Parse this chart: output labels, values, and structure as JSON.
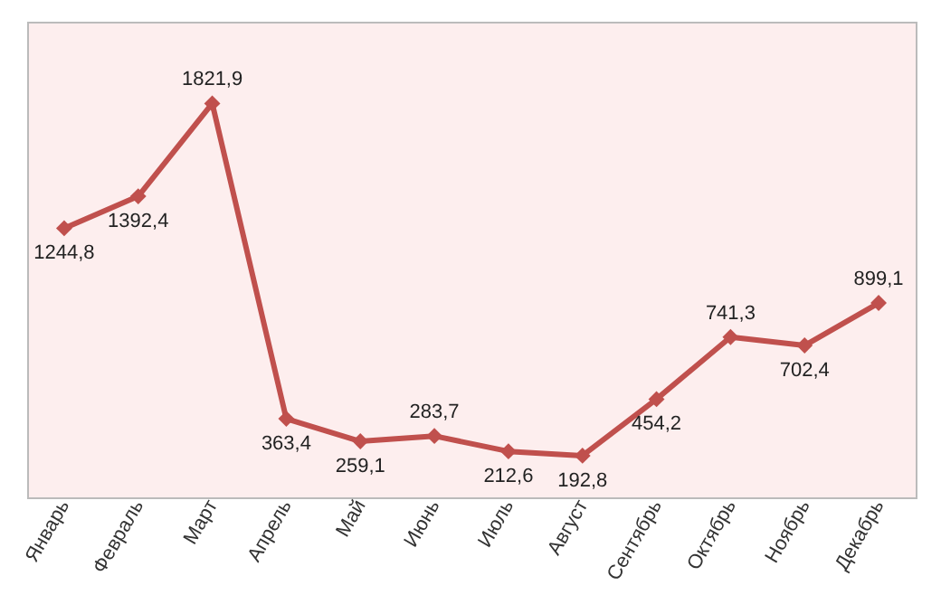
{
  "chart_data": {
    "type": "line",
    "categories": [
      "Январь",
      "Февраль",
      "Март",
      "Апрель",
      "Май",
      "Июнь",
      "Июль",
      "Август",
      "Сентябрь",
      "Октябрь",
      "Ноябрь",
      "Декабрь"
    ],
    "series": [
      {
        "color": "#c0504d",
        "values": [
          1244.8,
          1392.4,
          1821.9,
          363.4,
          259.1,
          283.7,
          212.6,
          192.8,
          454.2,
          741.3,
          702.4,
          899.1
        ],
        "value_labels": [
          "1244,8",
          "1392,4",
          "1821,9",
          "363,4",
          "259,1",
          "283,7",
          "212,6",
          "192,8",
          "454,2",
          "741,3",
          "702,4",
          "899,1"
        ]
      }
    ],
    "marker": "diamond",
    "line_style": "solid",
    "tick_labels": "x"
  }
}
